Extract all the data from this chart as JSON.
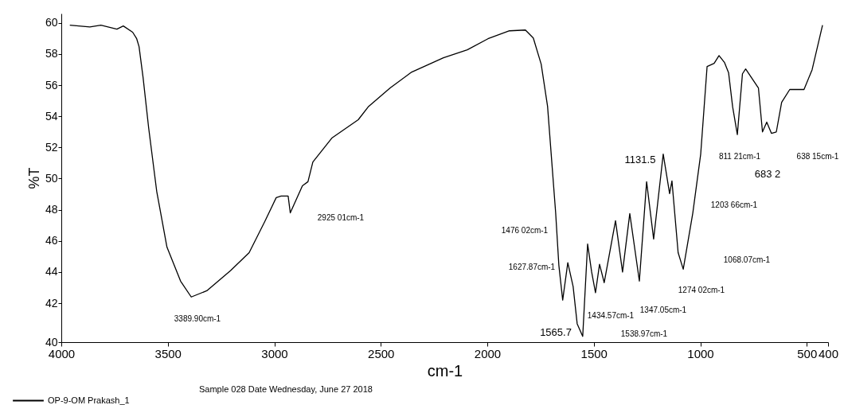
{
  "chart_data": {
    "type": "line",
    "xlabel": "cm-1",
    "ylabel": "%T",
    "xlim": [
      4000,
      400
    ],
    "xticks": [
      4000,
      3500,
      3000,
      2500,
      2000,
      1500,
      1000,
      500,
      400
    ],
    "ylim": [
      39.5,
      60.6
    ],
    "yticks": [
      {
        "value": 39.5,
        "label": "40"
      },
      42,
      44,
      46,
      48,
      50,
      52,
      54,
      56,
      58,
      60
    ],
    "grid": false,
    "legend": "bottom left",
    "marker": "none",
    "line_style": "solid",
    "series": [
      {
        "name": "OP-9-OM Prakash_1",
        "color": "#000000",
        "x": [
          3960,
          3866,
          3814,
          3739,
          3709,
          3665,
          3646,
          3635,
          3616,
          3590,
          3552,
          3504,
          3440,
          3390,
          3317,
          3205,
          3118,
          3043,
          2991,
          2968,
          2935,
          2925,
          2868,
          2842,
          2819,
          2730,
          2606,
          2557,
          2456,
          2355,
          2206,
          2094,
          1997,
          1896,
          1821,
          1784,
          1747,
          1717,
          1698,
          1679,
          1664,
          1646,
          1622,
          1597,
          1578,
          1552,
          1529,
          1510,
          1492,
          1473,
          1451,
          1398,
          1365,
          1331,
          1286,
          1252,
          1219,
          1174,
          1144,
          1133,
          1104,
          1080,
          1035,
          998,
          968,
          935,
          912,
          886,
          867,
          848,
          826,
          802,
          787,
          727,
          708,
          688,
          666,
          643,
          618,
          580,
          513,
          475,
          426
        ],
        "values": [
          59.85,
          59.74,
          59.85,
          59.6,
          59.8,
          59.4,
          58.98,
          58.47,
          56.48,
          53.27,
          49.18,
          45.6,
          43.42,
          42.4,
          42.8,
          44.1,
          45.25,
          47.29,
          48.78,
          48.88,
          48.88,
          47.8,
          49.54,
          49.8,
          51.07,
          52.6,
          53.78,
          54.64,
          55.82,
          56.84,
          57.76,
          58.27,
          58.98,
          59.49,
          59.54,
          59.03,
          57.35,
          54.64,
          51.22,
          47.8,
          44.44,
          42.2,
          44.6,
          43.07,
          40.68,
          39.87,
          45.8,
          44.0,
          42.67,
          44.5,
          43.32,
          47.3,
          44.0,
          47.76,
          43.42,
          49.8,
          46.12,
          51.58,
          49.03,
          49.85,
          45.25,
          44.18,
          47.8,
          51.58,
          57.2,
          57.4,
          57.9,
          57.45,
          56.79,
          54.6,
          52.83,
          56.73,
          57.04,
          55.82,
          53.0,
          53.63,
          52.91,
          53.0,
          54.9,
          55.72,
          55.72,
          56.99,
          59.85
        ]
      }
    ],
    "annotations": [
      "3389.90cm-1",
      "2925 01cm-1",
      "1476 02cm-1",
      "1627.87cm-1",
      "1565.7",
      "1131.5",
      "1434.57cm-1",
      "1347.05cm-1",
      "1538.97cm-1",
      "1274 02cm-1",
      "1068.07cm-1",
      "1203 66cm-1",
      "811 21cm-1",
      "683 2",
      "638 15cm-1",
      "Sample 028 Date Wednesday, June 27 2018"
    ]
  }
}
